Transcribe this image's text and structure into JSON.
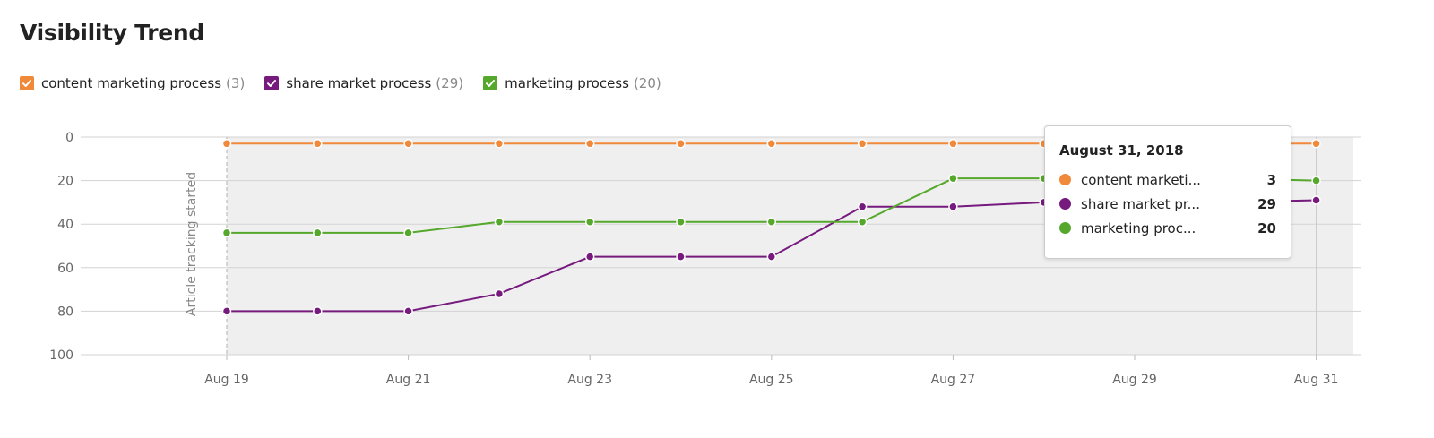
{
  "page": {
    "title": "Visibility Trend"
  },
  "legend": [
    {
      "label": "content marketing process",
      "count": "(3)",
      "color": "#f0893a",
      "checked": true
    },
    {
      "label": "share market process",
      "count": "(29)",
      "color": "#761a7e",
      "checked": true
    },
    {
      "label": "marketing process",
      "count": "(20)",
      "color": "#55a82b",
      "checked": true
    }
  ],
  "tooltip": {
    "date": "August 31, 2018",
    "rows": [
      {
        "name": "content marketi...",
        "value": "3",
        "color": "#f0893a"
      },
      {
        "name": "share market pr...",
        "value": "29",
        "color": "#761a7e"
      },
      {
        "name": "marketing proc...",
        "value": "20",
        "color": "#55a82b"
      }
    ]
  },
  "chart_data": {
    "type": "line",
    "ylim": [
      0,
      100
    ],
    "y_inverted": true,
    "yticks": [
      "0",
      "20",
      "40",
      "60",
      "80",
      "100"
    ],
    "x": [
      "Aug 19",
      "Aug 20",
      "Aug 21",
      "Aug 22",
      "Aug 23",
      "Aug 24",
      "Aug 25",
      "Aug 26",
      "Aug 27",
      "Aug 28",
      "Aug 29",
      "Aug 30",
      "Aug 31"
    ],
    "xticks": [
      "Aug 19",
      "Aug 21",
      "Aug 23",
      "Aug 25",
      "Aug 27",
      "Aug 29",
      "Aug 31"
    ],
    "annotation": "Article tracking started",
    "series": [
      {
        "name": "content marketing process",
        "color": "#f0893a",
        "values": [
          3,
          3,
          3,
          3,
          3,
          3,
          3,
          3,
          3,
          3,
          3,
          3,
          3
        ]
      },
      {
        "name": "share market process",
        "color": "#761a7e",
        "values": [
          80,
          80,
          80,
          72,
          55,
          55,
          55,
          32,
          32,
          30,
          30,
          30,
          29
        ]
      },
      {
        "name": "marketing process",
        "color": "#55a82b",
        "values": [
          44,
          44,
          44,
          39,
          39,
          39,
          39,
          39,
          19,
          19,
          19,
          19,
          20
        ]
      }
    ]
  }
}
